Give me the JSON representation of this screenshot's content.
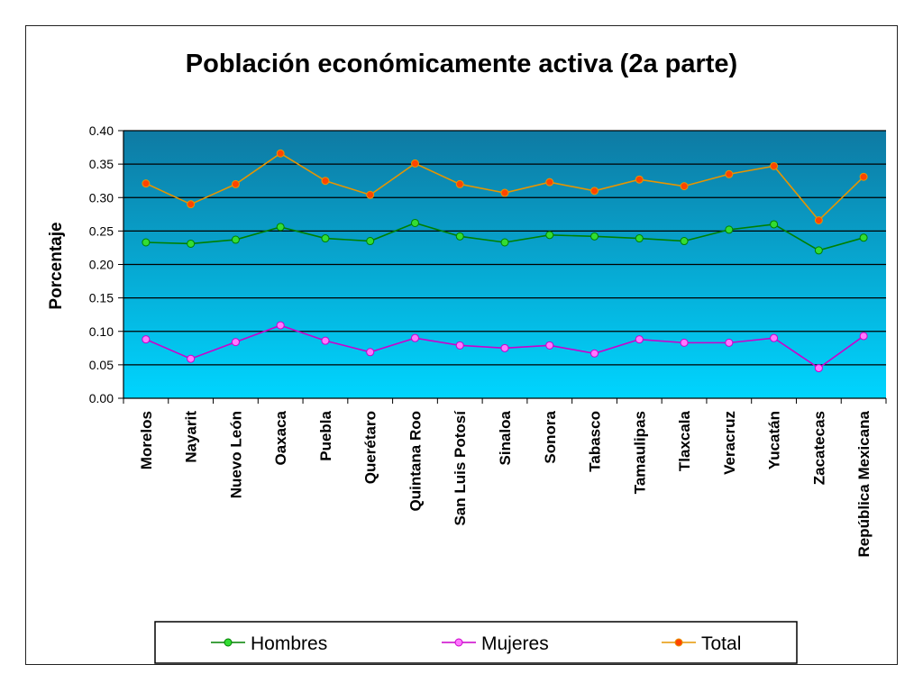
{
  "chart_data": {
    "type": "line",
    "title": "Población económicamente activa (2a parte)",
    "xlabel": "",
    "ylabel": "Porcentaje",
    "ylim": [
      0,
      0.4
    ],
    "yticks": [
      "0.00",
      "0.05",
      "0.10",
      "0.15",
      "0.20",
      "0.25",
      "0.30",
      "0.35",
      "0.40"
    ],
    "grid": true,
    "legend_position": "bottom",
    "categories": [
      "Morelos",
      "Nayarit",
      "Nuevo León",
      "Oaxaca",
      "Puebla",
      "Querétaro",
      "Quintana Roo",
      "San Luis Potosí",
      "Sinaloa",
      "Sonora",
      "Tabasco",
      "Tamaulipas",
      "Tlaxcala",
      "Veracruz",
      "Yucatán",
      "Zacatecas",
      "República Mexicana"
    ],
    "series": [
      {
        "name": "Hombres",
        "color": "#008000",
        "marker_color": "#33dd33",
        "values": [
          0.233,
          0.231,
          0.237,
          0.256,
          0.239,
          0.235,
          0.262,
          0.242,
          0.233,
          0.244,
          0.242,
          0.239,
          0.235,
          0.252,
          0.26,
          0.221,
          0.24
        ]
      },
      {
        "name": "Mujeres",
        "color": "#cc00cc",
        "marker_color": "#ff77ff",
        "values": [
          0.088,
          0.059,
          0.084,
          0.109,
          0.086,
          0.069,
          0.09,
          0.079,
          0.075,
          0.079,
          0.067,
          0.088,
          0.083,
          0.083,
          0.09,
          0.045,
          0.093
        ]
      },
      {
        "name": "Total",
        "color": "#e69500",
        "marker_color": "#ff4400",
        "values": [
          0.321,
          0.29,
          0.32,
          0.366,
          0.325,
          0.304,
          0.351,
          0.32,
          0.307,
          0.323,
          0.31,
          0.327,
          0.317,
          0.335,
          0.347,
          0.266,
          0.331
        ]
      }
    ],
    "colors": {
      "plot_top": "#0e7aa3",
      "plot_bottom": "#00d5ff",
      "gridline": "#000000"
    }
  }
}
